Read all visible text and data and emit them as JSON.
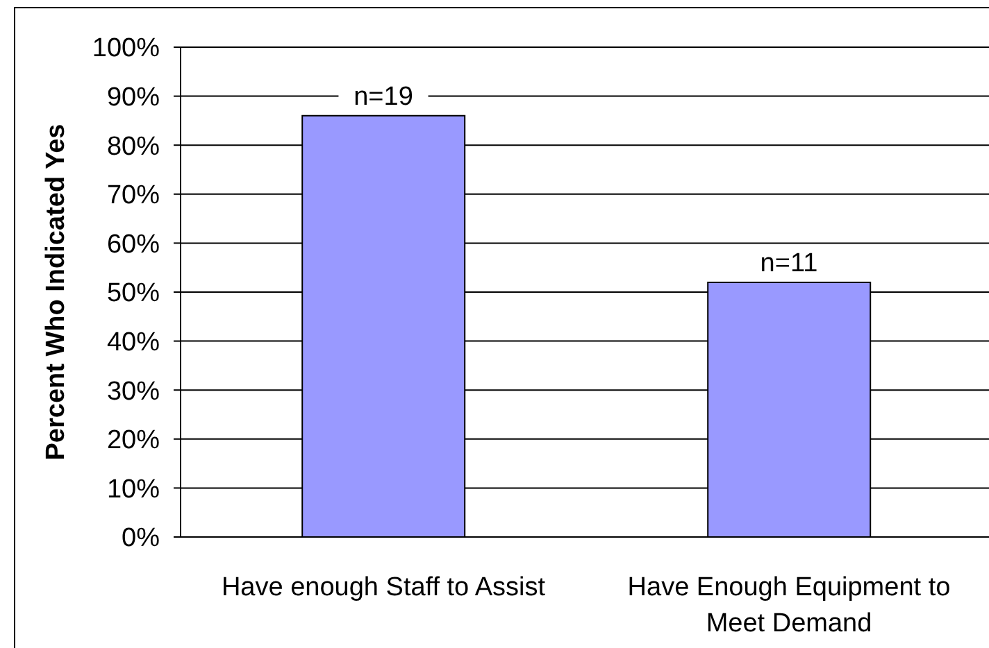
{
  "chart_data": {
    "type": "bar",
    "ylabel": "Percent Who Indicated Yes",
    "categories": [
      "Have enough Staff to Assist",
      "Have Enough Equipment to Meet Demand"
    ],
    "values": [
      86,
      52
    ],
    "color": "#9999ff",
    "ylim": [
      0,
      100
    ],
    "yticks": [
      {
        "value": 0,
        "label": "0%"
      },
      {
        "value": 10,
        "label": "10%"
      },
      {
        "value": 20,
        "label": "20%"
      },
      {
        "value": 30,
        "label": "30%"
      },
      {
        "value": 40,
        "label": "40%"
      },
      {
        "value": 50,
        "label": "50%"
      },
      {
        "value": 60,
        "label": "60%"
      },
      {
        "value": 70,
        "label": "70%"
      },
      {
        "value": 80,
        "label": "80%"
      },
      {
        "value": 90,
        "label": "90%"
      },
      {
        "value": 100,
        "label": "100%"
      }
    ],
    "grid": "y",
    "annotations": [
      {
        "text": "n=19",
        "x": "Have enough Staff to Assist",
        "y": 86
      },
      {
        "text": "n=11",
        "x": "Have Enough Equipment to Meet Demand",
        "y": 52
      }
    ]
  }
}
